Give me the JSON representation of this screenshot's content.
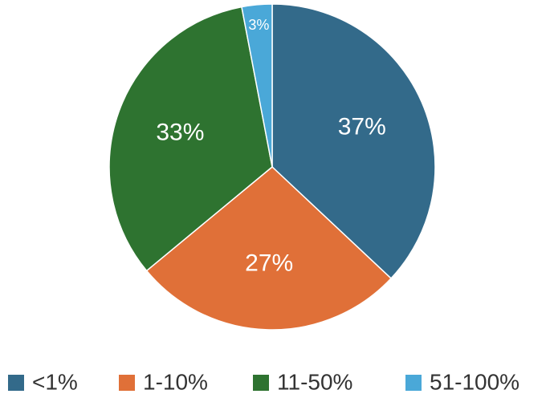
{
  "chart_data": {
    "type": "pie",
    "categories": [
      "<1%",
      "1-10%",
      "11-50%",
      "51-100%"
    ],
    "values": [
      37,
      27,
      33,
      3
    ],
    "value_labels": [
      "37%",
      "27%",
      "33%",
      "3%"
    ],
    "colors": [
      "#336a8a",
      "#e07038",
      "#2e7330",
      "#4aa8d8"
    ],
    "legend": "bottom"
  }
}
